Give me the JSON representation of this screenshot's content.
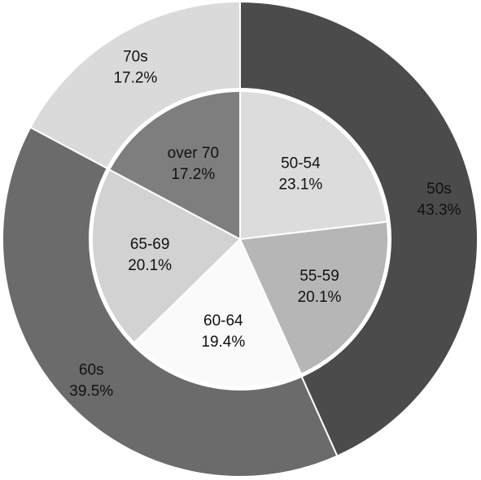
{
  "chart_data": [
    {
      "type": "pie",
      "ring": "outer",
      "categories": [
        "50s",
        "60s",
        "70s"
      ],
      "values": [
        43.3,
        39.5,
        17.2
      ],
      "labels": [
        "43.3%",
        "39.5%",
        "17.2%"
      ],
      "colors": [
        "#4b4b4b",
        "#6b6b6b",
        "#dadada"
      ]
    },
    {
      "type": "pie",
      "ring": "inner",
      "categories": [
        "50-54",
        "55-59",
        "60-64",
        "65-69",
        "over 70"
      ],
      "values": [
        23.1,
        20.1,
        19.4,
        20.1,
        17.2
      ],
      "labels": [
        "23.1%",
        "20.1%",
        "19.4%",
        "20.1%",
        "17.2%"
      ],
      "colors": [
        "#dcdcdc",
        "#b6b6b6",
        "#fafafa",
        "#d2d2d2",
        "#7e7e7e"
      ]
    }
  ]
}
